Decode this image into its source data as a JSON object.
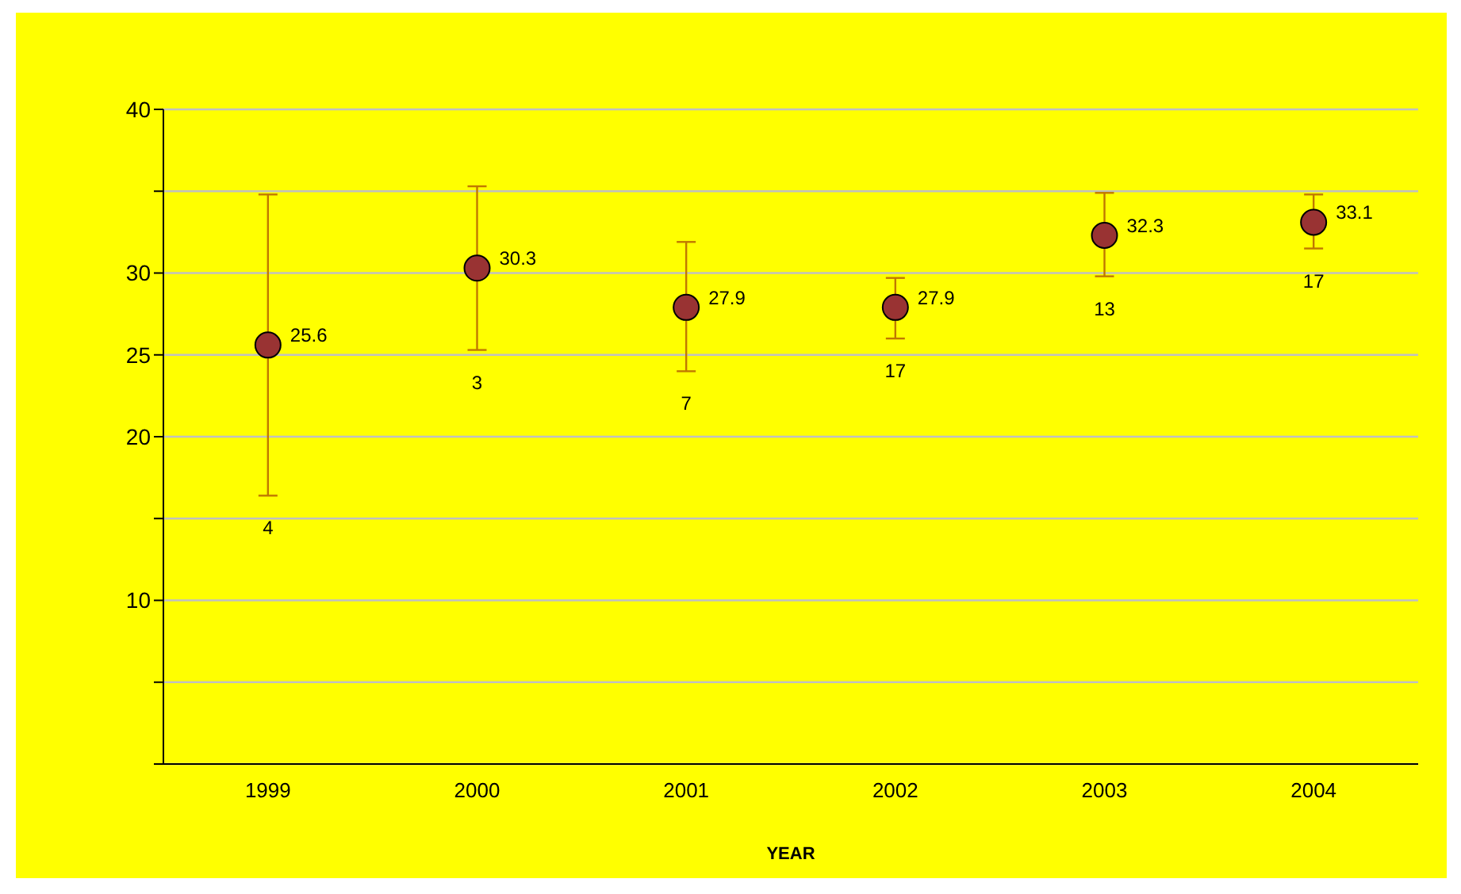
{
  "chart_data": {
    "type": "scatter",
    "xlabel": "YEAR",
    "categories": [
      "1999",
      "2000",
      "2001",
      "2002",
      "2003",
      "2004"
    ],
    "values": [
      25.6,
      30.3,
      27.9,
      27.9,
      32.3,
      33.1
    ],
    "color": "#993333",
    "errors": [
      [
        16.4,
        34.8
      ],
      [
        25.3,
        35.3
      ],
      [
        24.0,
        31.9
      ],
      [
        26.0,
        29.7
      ],
      [
        29.8,
        34.9
      ],
      [
        31.5,
        34.8
      ]
    ],
    "data_labels": true,
    "marker": "circle",
    "ylim": [
      0,
      40
    ],
    "yticks": [
      {
        "value": 0,
        "label": null
      },
      {
        "value": 5,
        "label": null
      },
      10,
      {
        "value": 15,
        "label": null
      },
      20,
      25,
      30,
      {
        "value": 35,
        "label": null
      },
      40
    ],
    "grid": "y",
    "legend": false,
    "annotations": [
      "4",
      "3",
      "7",
      "17",
      "13",
      "17"
    ]
  }
}
